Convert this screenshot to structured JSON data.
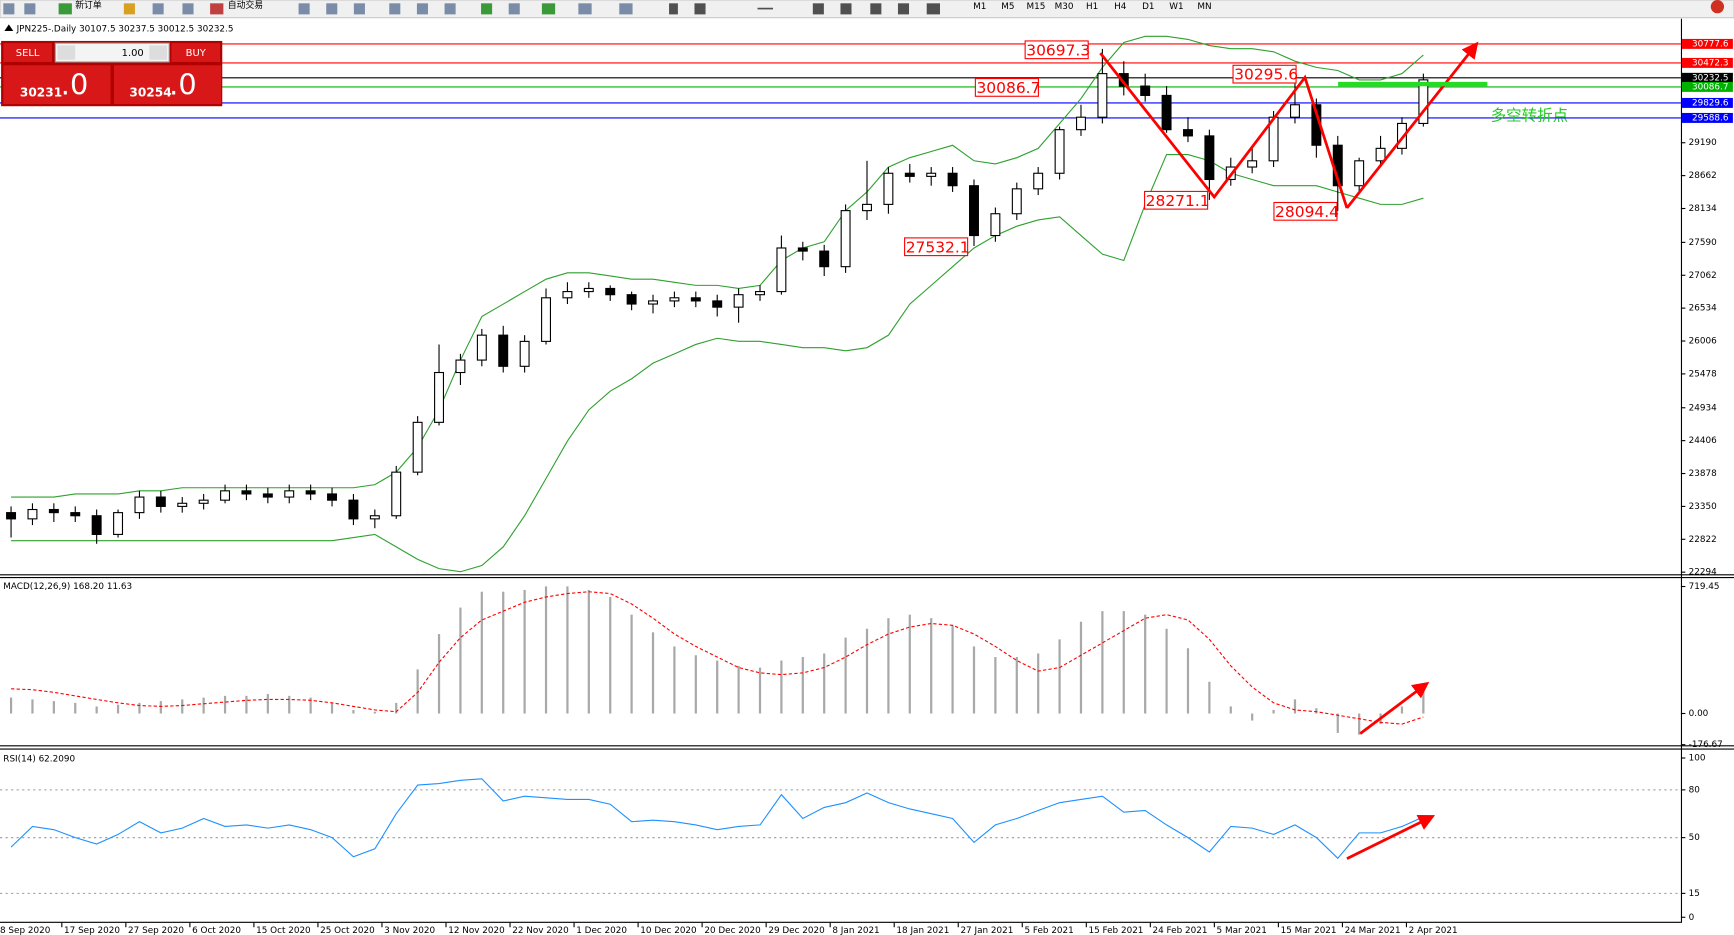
{
  "toolbar": {
    "new_order": "新订单",
    "auto_trading": "自动交易",
    "timeframes": [
      "M1",
      "M5",
      "M15",
      "M30",
      "H1",
      "H4",
      "D1",
      "W1",
      "MN"
    ]
  },
  "window_title": "JPN225-.Daily  30107.5 30237.5 30012.5 30232.5",
  "order_panel": {
    "sell": "SELL",
    "lots": "1.00",
    "buy": "BUY",
    "sell_price_main": "30231",
    "sell_price_frac": ".0",
    "buy_price_main": "30254",
    "buy_price_frac": ".0"
  },
  "chart_data": [
    {
      "type": "candlestick",
      "x_labels": [
        "8 Sep 2020",
        "17 Sep 2020",
        "27 Sep 2020",
        "6 Oct 2020",
        "15 Oct 2020",
        "25 Oct 2020",
        "3 Nov 2020",
        "12 Nov 2020",
        "22 Nov 2020",
        "1 Dec 2020",
        "10 Dec 2020",
        "20 Dec 2020",
        "29 Dec 2020",
        "8 Jan 2021",
        "18 Jan 2021",
        "27 Jan 2021",
        "5 Feb 2021",
        "15 Feb 2021",
        "24 Feb 2021",
        "5 Mar 2021",
        "15 Mar 2021",
        "24 Mar 2021",
        "2 Apr 2021"
      ],
      "open": [
        23250,
        23150,
        23300,
        23250,
        23200,
        22900,
        23250,
        23500,
        23350,
        23400,
        23450,
        23600,
        23550,
        23500,
        23600,
        23550,
        23450,
        23150,
        23200,
        23900,
        24700,
        25500,
        25700,
        26100,
        25600,
        26000,
        26700,
        26800,
        26850,
        26750,
        26600,
        26650,
        26700,
        26650,
        26550,
        26750,
        26800,
        27500,
        27450,
        27200,
        28100,
        28200,
        28700,
        28650,
        28700,
        28500,
        27700,
        28050,
        28450,
        28700,
        29400,
        29600,
        30300,
        30100,
        29950,
        29400,
        29300,
        28600,
        28800,
        28900,
        29600,
        29800,
        29150,
        28500,
        28900,
        29100,
        29500
      ],
      "high": [
        23350,
        23400,
        23400,
        23350,
        23300,
        23300,
        23600,
        23600,
        23500,
        23550,
        23700,
        23700,
        23650,
        23700,
        23700,
        23650,
        23550,
        23300,
        24000,
        24800,
        25950,
        25800,
        26200,
        26250,
        26100,
        26850,
        26950,
        26950,
        26900,
        26800,
        26750,
        26800,
        26800,
        26750,
        26850,
        26900,
        27700,
        27600,
        27550,
        28200,
        28900,
        28800,
        28850,
        28800,
        28800,
        28600,
        28150,
        28550,
        28800,
        29450,
        29800,
        30697.3,
        30500,
        30300,
        30100,
        29600,
        29400,
        28950,
        29100,
        29700,
        30295.6,
        29900,
        29300,
        28950,
        29300,
        29600,
        30300
      ],
      "low": [
        22850,
        23050,
        23100,
        23100,
        22750,
        22850,
        23150,
        23250,
        23250,
        23300,
        23400,
        23450,
        23400,
        23400,
        23450,
        23350,
        23050,
        23000,
        23150,
        23850,
        24650,
        25300,
        25600,
        25500,
        25500,
        25950,
        26600,
        26700,
        26650,
        26500,
        26450,
        26550,
        26550,
        26400,
        26300,
        26650,
        26750,
        27300,
        27050,
        27100,
        27950,
        28050,
        28550,
        28500,
        28400,
        27532.1,
        27600,
        27950,
        28350,
        28600,
        29300,
        29500,
        29950,
        29850,
        29350,
        29200,
        28271.1,
        28500,
        28700,
        28800,
        29500,
        28950,
        28094.4,
        28400,
        28800,
        29000,
        29450
      ],
      "close": [
        23150,
        23300,
        23250,
        23200,
        22900,
        23250,
        23500,
        23350,
        23400,
        23450,
        23600,
        23550,
        23500,
        23600,
        23550,
        23450,
        23150,
        23200,
        23900,
        24700,
        25500,
        25700,
        26100,
        25600,
        26000,
        26700,
        26800,
        26850,
        26750,
        26600,
        26650,
        26700,
        26650,
        26550,
        26750,
        26800,
        27500,
        27450,
        27200,
        28100,
        28200,
        28700,
        28650,
        28700,
        28500,
        27700,
        28050,
        28450,
        28700,
        29400,
        29600,
        30300,
        30100,
        29950,
        29400,
        29300,
        28600,
        28800,
        28900,
        29600,
        29800,
        29150,
        28500,
        28900,
        29100,
        29500,
        30200
      ],
      "bands": [
        {
          "color": "#2ea02e",
          "values": [
            23500,
            23500,
            23500,
            23550,
            23550,
            23550,
            23600,
            23600,
            23650,
            23650,
            23650,
            23650,
            23650,
            23650,
            23650,
            23650,
            23650,
            23700,
            23900,
            24300,
            24900,
            25700,
            26400,
            26600,
            26800,
            27000,
            27100,
            27100,
            27050,
            27000,
            27000,
            26950,
            26900,
            26900,
            26850,
            26900,
            27300,
            27500,
            27600,
            28100,
            28400,
            28800,
            28950,
            29050,
            29150,
            28900,
            28850,
            28950,
            29100,
            29500,
            29900,
            30400,
            30800,
            30900,
            30900,
            30850,
            30750,
            30700,
            30700,
            30650,
            30500,
            30400,
            30350,
            30200,
            30200,
            30300,
            30600
          ]
        },
        {
          "color": "#2ea02e",
          "values": [
            22800,
            22800,
            22800,
            22800,
            22800,
            22800,
            22800,
            22800,
            22800,
            22800,
            22800,
            22800,
            22800,
            22800,
            22800,
            22800,
            22850,
            22900,
            22700,
            22500,
            22350,
            22300,
            22400,
            22700,
            23200,
            23800,
            24400,
            24900,
            25200,
            25400,
            25650,
            25800,
            25950,
            26050,
            26000,
            26000,
            25950,
            25900,
            25900,
            25850,
            25900,
            26100,
            26600,
            26900,
            27200,
            27500,
            27700,
            27850,
            27950,
            28000,
            27700,
            27400,
            27300,
            28200,
            29000,
            29000,
            28900,
            28700,
            28600,
            28500,
            28500,
            28500,
            28400,
            28300,
            28200,
            28200,
            28300
          ]
        }
      ],
      "levels": [
        {
          "value": 30777.6,
          "color": "#ff0000"
        },
        {
          "value": 30472.3,
          "color": "#ff0000"
        },
        {
          "value": 30232.5,
          "color": "#000000"
        },
        {
          "value": 30086.7,
          "color": "#00b000"
        },
        {
          "value": 29829.6,
          "color": "#0000ff"
        },
        {
          "value": 29588.6,
          "color": "#0000ff"
        }
      ],
      "annotations": [
        {
          "text": "30697.3",
          "color": "#ff0000",
          "boxed": true
        },
        {
          "text": "30086.7",
          "color": "#ff0000",
          "boxed": true
        },
        {
          "text": "30295.6",
          "color": "#ff0000",
          "boxed": true
        },
        {
          "text": "28271.1",
          "color": "#ff0000",
          "boxed": true
        },
        {
          "text": "28094.4",
          "color": "#ff0000",
          "boxed": true
        },
        {
          "text": "27532.1",
          "color": "#ff0000",
          "boxed": true
        },
        {
          "text": "多空转折点",
          "color": "#22cc22",
          "boxed": false
        }
      ],
      "ylim": [
        22260,
        31127
      ],
      "yticks": [
        22294,
        22822,
        23350,
        23878,
        24406,
        24934,
        25478,
        26006,
        26534,
        27062,
        27590,
        28134,
        28662,
        29190
      ]
    },
    {
      "type": "macd",
      "title": "MACD(12,26,9) 168.20 11.63",
      "series": [
        {
          "color": "#a8a8a8",
          "style": "bar",
          "values": [
            90,
            80,
            70,
            60,
            40,
            50,
            60,
            70,
            80,
            90,
            100,
            100,
            110,
            100,
            90,
            60,
            20,
            10,
            60,
            250,
            450,
            600,
            690,
            690,
            700,
            720,
            720,
            700,
            660,
            560,
            460,
            380,
            330,
            300,
            270,
            260,
            300,
            320,
            340,
            430,
            480,
            540,
            560,
            540,
            500,
            380,
            320,
            320,
            340,
            420,
            520,
            580,
            580,
            560,
            480,
            370,
            180,
            40,
            -40,
            20,
            80,
            30,
            -110,
            -120,
            -60,
            40,
            150
          ]
        },
        {
          "color": "#ff0000",
          "style": "dashed",
          "values": [
            140,
            135,
            120,
            100,
            80,
            60,
            45,
            40,
            45,
            55,
            65,
            75,
            80,
            80,
            75,
            60,
            40,
            20,
            10,
            120,
            290,
            430,
            530,
            580,
            630,
            660,
            680,
            690,
            680,
            620,
            540,
            450,
            380,
            320,
            260,
            230,
            220,
            230,
            260,
            320,
            390,
            450,
            490,
            510,
            500,
            450,
            380,
            300,
            240,
            260,
            330,
            400,
            470,
            540,
            560,
            530,
            420,
            270,
            150,
            60,
            20,
            10,
            -10,
            -30,
            -50,
            -60,
            -20
          ]
        }
      ],
      "ylim": [
        -176.67,
        770
      ],
      "yticks": [
        719.45,
        {
          "value": 0,
          "label": "0.00"
        },
        -176.67
      ]
    },
    {
      "type": "line",
      "title": "RSI(14) 62.2090",
      "series": [
        {
          "color": "#1e90ff",
          "values": [
            44,
            57,
            55,
            50,
            46,
            52,
            60,
            53,
            56,
            62,
            57,
            58,
            56,
            58,
            55,
            50,
            38,
            43,
            65,
            83,
            84,
            86,
            87,
            73,
            76,
            75,
            74,
            74,
            71,
            60,
            61,
            60,
            58,
            55,
            57,
            58,
            77,
            62,
            69,
            72,
            78,
            72,
            68,
            65,
            62,
            47,
            58,
            62,
            67,
            72,
            74,
            76,
            66,
            67,
            58,
            50,
            41,
            57,
            56,
            52,
            58,
            50,
            37,
            53,
            53,
            57,
            63
          ]
        }
      ],
      "levels": [
        80,
        50,
        15
      ],
      "ylim": [
        -2.8,
        105.6
      ],
      "yticks": [
        100,
        80,
        50,
        15,
        0
      ]
    }
  ]
}
